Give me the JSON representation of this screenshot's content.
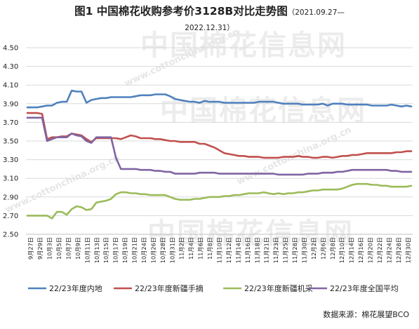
{
  "header": {
    "title": "图1  中国棉花收购参考价3128B对比走势图",
    "range_line1": "（2021.09.27—",
    "range_line2": "2022.12.31）"
  },
  "watermark": {
    "brand": "中国棉花信息网",
    "url": "www.cottonchina.org.cn"
  },
  "source": "数据来源：棉花展望BCO",
  "chart_data": {
    "type": "line",
    "ylim": [
      2.5,
      4.5
    ],
    "yticks": [
      2.5,
      2.7,
      2.9,
      3.1,
      3.3,
      3.5,
      3.7,
      3.9,
      4.1,
      4.3,
      4.5
    ],
    "ytick_labels": [
      "2.50",
      "2.70",
      "2.90",
      "3.10",
      "3.30",
      "3.50",
      "3.70",
      "3.90",
      "4.10",
      "4.30",
      "4.50"
    ],
    "xtick_labels": [
      "9月27日",
      "9月29日",
      "10月3日",
      "10月5日",
      "10月7日",
      "10月9日",
      "10月11日",
      "10月13日",
      "10月15日",
      "10月17日",
      "10月19日",
      "10月21日",
      "10月24日",
      "10月26日",
      "10月28日",
      "10月31日",
      "11月2日",
      "11月4日",
      "11月6日",
      "11月8日",
      "11月10日",
      "11月12日",
      "11月14日",
      "11月16日",
      "11月18日",
      "11月21日",
      "11月23日",
      "11月25日",
      "11月28日",
      "11月30日",
      "12月2日",
      "12月6日",
      "12月8日",
      "12月10日",
      "12月14日",
      "12月16日",
      "12月20日",
      "12月22日",
      "12月24日",
      "12月28日",
      "12月30日"
    ],
    "legend_position": "bottom",
    "series": [
      {
        "name": "22/23年度内地",
        "color": "#4f81bd",
        "values": [
          3.86,
          3.86,
          3.86,
          3.87,
          3.88,
          3.88,
          3.91,
          3.92,
          3.92,
          4.04,
          4.03,
          4.03,
          3.91,
          3.94,
          3.95,
          3.96,
          3.96,
          3.97,
          3.97,
          3.97,
          3.97,
          3.97,
          3.98,
          3.99,
          3.99,
          3.99,
          4.0,
          4.0,
          4.0,
          3.98,
          3.95,
          3.94,
          3.93,
          3.92,
          3.92,
          3.91,
          3.93,
          3.92,
          3.92,
          3.92,
          3.91,
          3.91,
          3.91,
          3.91,
          3.91,
          3.91,
          3.91,
          3.92,
          3.92,
          3.92,
          3.92,
          3.91,
          3.9,
          3.9,
          3.9,
          3.9,
          3.89,
          3.89,
          3.89,
          3.89,
          3.9,
          3.88,
          3.9,
          3.9,
          3.9,
          3.89,
          3.89,
          3.89,
          3.89,
          3.89,
          3.88,
          3.88,
          3.88,
          3.88,
          3.89,
          3.88,
          3.87,
          3.88,
          3.87
        ]
      },
      {
        "name": "22/23年度新疆手摘",
        "color": "#c0504d",
        "values": [
          3.8,
          3.8,
          3.8,
          3.79,
          3.52,
          3.54,
          3.54,
          3.55,
          3.55,
          3.58,
          3.57,
          3.56,
          3.52,
          3.49,
          3.53,
          3.53,
          3.53,
          3.53,
          3.53,
          3.52,
          3.54,
          3.56,
          3.55,
          3.53,
          3.53,
          3.53,
          3.52,
          3.52,
          3.51,
          3.5,
          3.5,
          3.49,
          3.49,
          3.49,
          3.49,
          3.47,
          3.47,
          3.45,
          3.43,
          3.4,
          3.37,
          3.36,
          3.35,
          3.34,
          3.34,
          3.33,
          3.33,
          3.33,
          3.32,
          3.32,
          3.32,
          3.32,
          3.33,
          3.33,
          3.33,
          3.34,
          3.33,
          3.33,
          3.32,
          3.32,
          3.33,
          3.33,
          3.32,
          3.33,
          3.34,
          3.34,
          3.35,
          3.35,
          3.36,
          3.37,
          3.37,
          3.37,
          3.37,
          3.37,
          3.37,
          3.38,
          3.38,
          3.39,
          3.39
        ]
      },
      {
        "name": "22/23年度新疆机采",
        "color": "#9bbb59",
        "values": [
          2.7,
          2.7,
          2.7,
          2.7,
          2.7,
          2.67,
          2.74,
          2.74,
          2.71,
          2.77,
          2.8,
          2.79,
          2.76,
          2.77,
          2.84,
          2.85,
          2.86,
          2.88,
          2.93,
          2.95,
          2.95,
          2.94,
          2.94,
          2.93,
          2.93,
          2.92,
          2.92,
          2.92,
          2.92,
          2.9,
          2.88,
          2.87,
          2.87,
          2.87,
          2.88,
          2.88,
          2.89,
          2.9,
          2.9,
          2.9,
          2.91,
          2.91,
          2.92,
          2.92,
          2.93,
          2.94,
          2.94,
          2.94,
          2.95,
          2.94,
          2.93,
          2.94,
          2.93,
          2.94,
          2.94,
          2.95,
          2.95,
          2.96,
          2.97,
          2.97,
          2.98,
          2.98,
          2.98,
          2.98,
          2.99,
          3.01,
          3.03,
          3.04,
          3.04,
          3.04,
          3.03,
          3.03,
          3.02,
          3.02,
          3.01,
          3.01,
          3.01,
          3.01,
          3.02
        ]
      },
      {
        "name": "22/23年度全国平均",
        "color": "#8064a2",
        "values": [
          3.75,
          3.75,
          3.75,
          3.75,
          3.5,
          3.52,
          3.54,
          3.54,
          3.54,
          3.58,
          3.56,
          3.55,
          3.5,
          3.48,
          3.54,
          3.54,
          3.54,
          3.54,
          3.32,
          3.2,
          3.2,
          3.2,
          3.2,
          3.19,
          3.19,
          3.19,
          3.18,
          3.18,
          3.17,
          3.17,
          3.15,
          3.15,
          3.15,
          3.15,
          3.15,
          3.16,
          3.16,
          3.16,
          3.16,
          3.15,
          3.15,
          3.15,
          3.15,
          3.15,
          3.15,
          3.15,
          3.15,
          3.15,
          3.15,
          3.15,
          3.15,
          3.14,
          3.14,
          3.14,
          3.14,
          3.14,
          3.14,
          3.15,
          3.15,
          3.15,
          3.16,
          3.16,
          3.16,
          3.17,
          3.17,
          3.18,
          3.19,
          3.19,
          3.19,
          3.19,
          3.19,
          3.19,
          3.19,
          3.19,
          3.18,
          3.18,
          3.17,
          3.17,
          3.17
        ]
      }
    ]
  }
}
